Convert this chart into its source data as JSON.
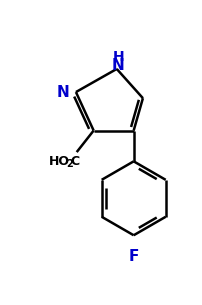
{
  "bg_color": "#ffffff",
  "bond_color": "#000000",
  "atom_color_N": "#0000cc",
  "atom_color_F": "#0000cc",
  "line_width": 1.8,
  "figsize": [
    2.03,
    3.05
  ],
  "dpi": 100,
  "xlim": [
    0,
    203
  ],
  "ylim": [
    0,
    305
  ]
}
